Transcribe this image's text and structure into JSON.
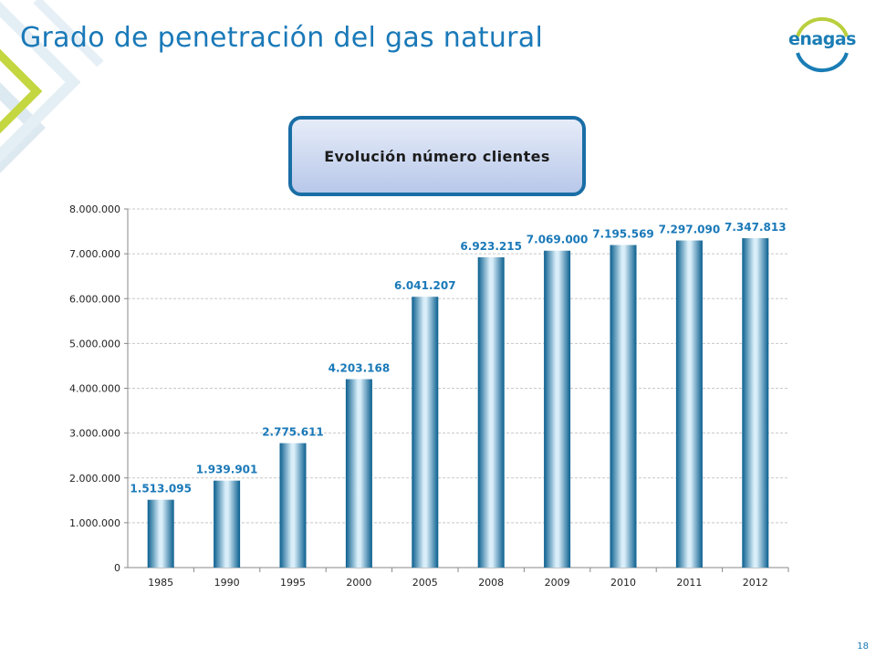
{
  "slide": {
    "title": "Grado de penetración del gas natural",
    "logo_text": "enagas",
    "page_number": "18"
  },
  "colors": {
    "title": "#1a79b8",
    "bar_dark": "#0a5f8f",
    "bar_light": "#d9eef9",
    "label": "#1a79b8",
    "deco_green": "#b9cf3d",
    "deco_blue": "#d8e8f2"
  },
  "chart_data": {
    "type": "bar",
    "title": "Evolución número clientes",
    "categories": [
      "1985",
      "1990",
      "1995",
      "2000",
      "2005",
      "2008",
      "2009",
      "2010",
      "2011",
      "2012"
    ],
    "values": [
      1513095,
      1939901,
      2775611,
      4203168,
      6041207,
      6923215,
      7069000,
      7195569,
      7297090,
      7347813
    ],
    "value_labels": [
      "1.513.095",
      "1.939.901",
      "2.775.611",
      "4.203.168",
      "6.041.207",
      "6.923.215",
      "7.069.000",
      "7.195.569",
      "7.297.090",
      "7.347.813"
    ],
    "ylim": [
      0,
      8000000
    ],
    "y_ticks": [
      "0",
      "1.000.000",
      "2.000.000",
      "3.000.000",
      "4.000.000",
      "5.000.000",
      "6.000.000",
      "7.000.000",
      "8.000.000"
    ],
    "grid": true,
    "legend": false
  }
}
